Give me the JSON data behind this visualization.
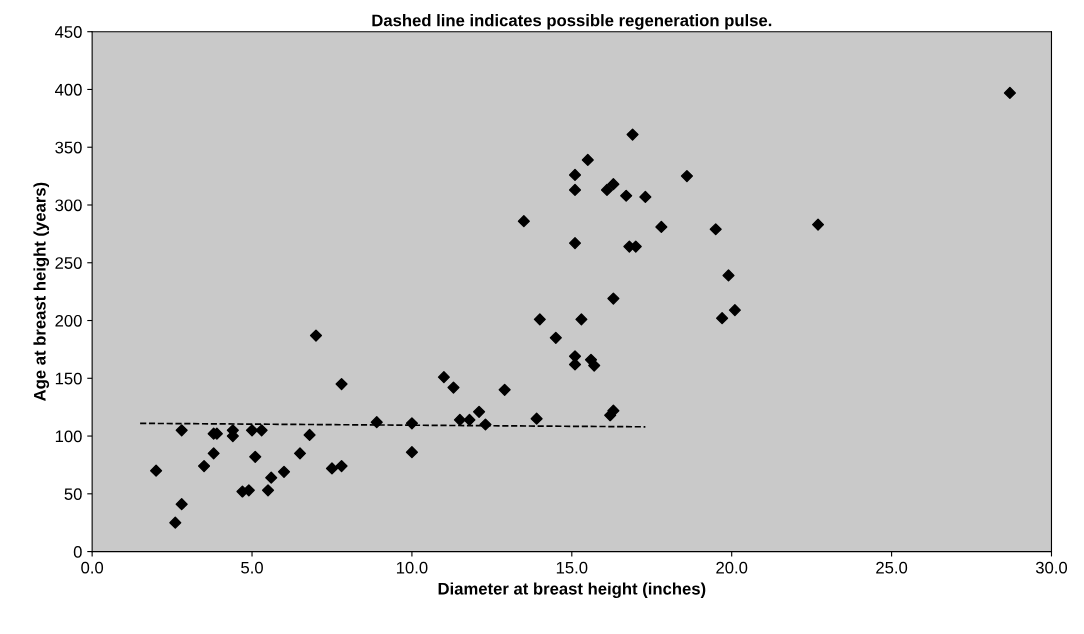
{
  "chart_data": {
    "type": "scatter",
    "title": "Dashed line indicates possible regeneration pulse.",
    "xlabel": "Diameter at breast height (inches)",
    "ylabel": "Age at breast height (years)",
    "xlim": [
      0,
      30
    ],
    "ylim": [
      0,
      450
    ],
    "xticks": [
      {
        "value": 0,
        "label": "0.0"
      },
      {
        "value": 5,
        "label": "5.0"
      },
      {
        "value": 10,
        "label": "10.0"
      },
      {
        "value": 15,
        "label": "15.0"
      },
      {
        "value": 20,
        "label": "20.0"
      },
      {
        "value": 25,
        "label": "25.0"
      },
      {
        "value": 30,
        "label": "30.0"
      }
    ],
    "yticks": [
      0,
      50,
      100,
      150,
      200,
      250,
      300,
      350,
      400,
      450
    ],
    "grid": false,
    "legend": false,
    "series": [
      {
        "color": "#000000",
        "marker": "diamond",
        "x": [
          2.0,
          2.6,
          2.8,
          2.8,
          3.5,
          3.8,
          3.8,
          3.9,
          4.4,
          4.4,
          4.7,
          4.9,
          5.0,
          5.1,
          5.3,
          5.5,
          5.6,
          6.0,
          6.5,
          6.8,
          7.0,
          7.5,
          7.8,
          7.8,
          8.9,
          10.0,
          10.0,
          11.0,
          11.3,
          11.5,
          11.8,
          12.1,
          12.3,
          12.9,
          13.5,
          13.9,
          14.0,
          14.5,
          15.1,
          15.1,
          15.1,
          15.1,
          15.1,
          15.3,
          15.5,
          15.6,
          15.7,
          16.1,
          16.2,
          16.3,
          16.3,
          16.3,
          16.7,
          16.8,
          16.9,
          17.0,
          17.3,
          17.8,
          18.6,
          19.5,
          19.7,
          19.9,
          20.1,
          22.7,
          28.7
        ],
        "values": [
          70,
          25,
          105,
          41,
          74,
          85,
          102,
          102,
          105,
          100,
          52,
          53,
          105,
          82,
          105,
          53,
          64,
          69,
          85,
          101,
          187,
          72,
          145,
          74,
          112,
          111,
          86,
          151,
          142,
          114,
          114,
          121,
          110,
          140,
          286,
          115,
          201,
          185,
          326,
          313,
          267,
          162,
          169,
          201,
          339,
          166,
          161,
          313,
          118,
          122,
          318,
          219,
          308,
          264,
          361,
          264,
          307,
          281,
          325,
          279,
          202,
          239,
          209,
          283,
          397
        ]
      },
      {
        "type": "line",
        "color": "#000000",
        "line_style": "dashed",
        "marker": "none",
        "x": [
          1.5,
          17.3
        ],
        "values": [
          111,
          108
        ]
      }
    ]
  }
}
